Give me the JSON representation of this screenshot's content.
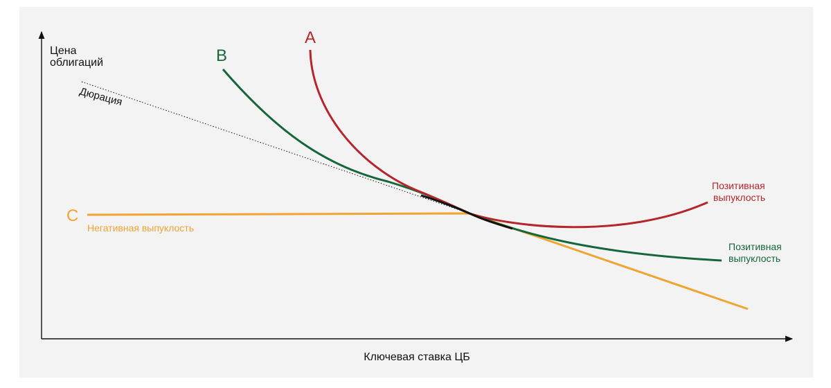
{
  "diagram": {
    "y_axis_label": [
      "Цена",
      "облигаций"
    ],
    "x_axis_label": "Ключевая ставка ЦБ",
    "duration_label": "Дюрация",
    "curves": {
      "A": {
        "letter": "A",
        "color": "#b5262c",
        "note": [
          "Позитивная",
          "выпуклость"
        ]
      },
      "B": {
        "letter": "B",
        "color": "#15673a",
        "note": [
          "Позитивная",
          "выпуклость"
        ]
      },
      "C": {
        "letter": "C",
        "color": "#f0a431",
        "note": [
          "Негативная выпуклость"
        ]
      }
    },
    "colors": {
      "duration": "#111111",
      "axis": "#111111",
      "background": "#f3f3f3"
    }
  }
}
